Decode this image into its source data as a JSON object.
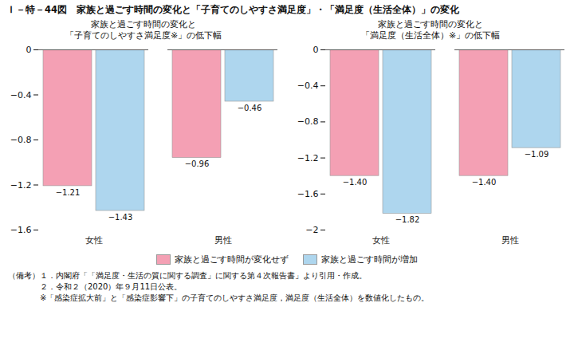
{
  "title": "Ｉ－特－44図　家族と過ごす時間の変化と「子育てのしやすさ満足度」・「満足度（生活全体）」の変化",
  "annotations": [
    "（備考）１．内閣府「「満足度・生活の質に関する調査」に関する第４次報告書」より引用・作成。",
    "　　　　２．令和２（2020）年９月11日公表。",
    "　　　　※「感染症拡大前」と「感染症影響下」の子育てのしやすさ満足度，満足度（生活全体）を数値化したもの。"
  ],
  "chart_data": [
    {
      "type": "bar",
      "title": "家族と過ごす時間の変化と",
      "subtitle": "「子育てのしやすさ満足度※」の低下幅",
      "categories": [
        "女性",
        "男性"
      ],
      "series": [
        {
          "name": "家族と過ごす時間が変化せず",
          "color": "#F4A0B4",
          "values": [
            -1.21,
            -0.96
          ],
          "value_labels": [
            "−1.21",
            "−0.96"
          ]
        },
        {
          "name": "家族と過ごす時間が増加",
          "color": "#AED6EE",
          "values": [
            -1.43,
            -0.46
          ],
          "value_labels": [
            "−1.43",
            "−0.46"
          ]
        }
      ],
      "ylim": [
        -1.6,
        0.0
      ],
      "yticks": [
        0,
        {
          "value": -0.4,
          "label": "−0.4"
        },
        {
          "value": -0.8,
          "label": "−0.8"
        },
        {
          "value": -1.2,
          "label": "−1.2"
        },
        {
          "value": -1.6,
          "label": "−1.6"
        }
      ],
      "data_labels": true,
      "grid": false,
      "legend": "bottom"
    },
    {
      "type": "bar",
      "title": "家族と過ごす時間の変化と",
      "subtitle": "「満足度（生活全体）※」の低下幅",
      "categories": [
        "女性",
        "男性"
      ],
      "series": [
        {
          "name": "家族と過ごす時間が変化せず",
          "color": "#F4A0B4",
          "values": [
            -1.4,
            -1.4
          ],
          "value_labels": [
            "−1.40",
            "−1.40"
          ]
        },
        {
          "name": "家族と過ごす時間が増加",
          "color": "#AED6EE",
          "values": [
            -1.82,
            -1.09
          ],
          "value_labels": [
            "−1.82",
            "−1.09"
          ]
        }
      ],
      "ylim": [
        -2.0,
        0.0
      ],
      "yticks": [
        0,
        {
          "value": -0.4,
          "label": "−0.4"
        },
        {
          "value": -0.8,
          "label": "−0.8"
        },
        {
          "value": -1.2,
          "label": "−1.2"
        },
        {
          "value": -1.6,
          "label": "−1.6"
        },
        {
          "value": -2.0,
          "label": "−2"
        }
      ],
      "data_labels": true,
      "grid": false,
      "legend": "bottom"
    }
  ]
}
